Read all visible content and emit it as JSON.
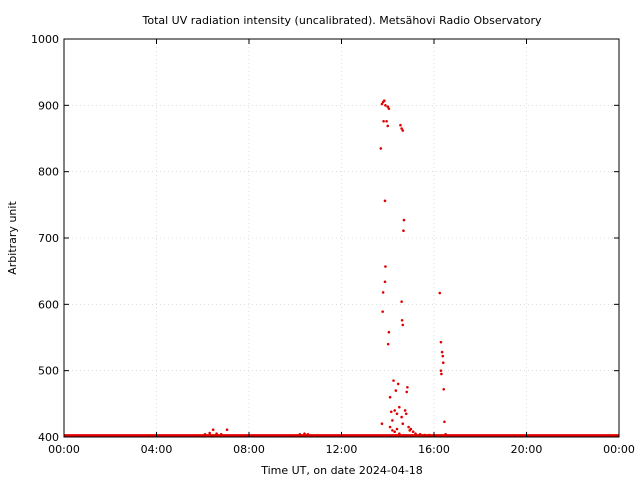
{
  "chart_data": {
    "type": "scatter",
    "title": "Total UV radiation intensity (uncalibrated). Metsähovi Radio Observatory",
    "xlabel": "Time UT, on date 2024-04-18",
    "ylabel": "Arbitrary unit",
    "xlim": [
      0,
      24
    ],
    "ylim": [
      400,
      1000
    ],
    "x_ticks": [
      {
        "value": 0,
        "label": "00:00"
      },
      {
        "value": 4,
        "label": "04:00"
      },
      {
        "value": 8,
        "label": "08:00"
      },
      {
        "value": 12,
        "label": "12:00"
      },
      {
        "value": 16,
        "label": "16:00"
      },
      {
        "value": 20,
        "label": "20:00"
      },
      {
        "value": 24,
        "label": "00:00"
      }
    ],
    "y_ticks": [
      {
        "value": 400,
        "label": "400"
      },
      {
        "value": 500,
        "label": "500"
      },
      {
        "value": 600,
        "label": "600"
      },
      {
        "value": 700,
        "label": "700"
      },
      {
        "value": 800,
        "label": "800"
      },
      {
        "value": 900,
        "label": "900"
      },
      {
        "value": 1000,
        "label": "1000"
      }
    ],
    "grid": true,
    "series_color": "#e00000",
    "baseline": {
      "y": 402,
      "x_start": 0,
      "x_end": 24
    },
    "points": [
      [
        6.1,
        404
      ],
      [
        6.3,
        406
      ],
      [
        6.45,
        411
      ],
      [
        6.6,
        405
      ],
      [
        6.8,
        404
      ],
      [
        7.05,
        411
      ],
      [
        10.2,
        404
      ],
      [
        10.4,
        405
      ],
      [
        10.55,
        404
      ],
      [
        13.7,
        835
      ],
      [
        13.75,
        902
      ],
      [
        13.8,
        905
      ],
      [
        13.85,
        907
      ],
      [
        13.9,
        900
      ],
      [
        13.82,
        876
      ],
      [
        13.95,
        876
      ],
      [
        14.0,
        898
      ],
      [
        14.05,
        895
      ],
      [
        14.0,
        869
      ],
      [
        13.88,
        756
      ],
      [
        13.9,
        657
      ],
      [
        13.88,
        634
      ],
      [
        13.8,
        618
      ],
      [
        13.78,
        589
      ],
      [
        14.05,
        558
      ],
      [
        14.02,
        540
      ],
      [
        13.75,
        420
      ],
      [
        14.1,
        460
      ],
      [
        14.15,
        438
      ],
      [
        14.2,
        425
      ],
      [
        14.25,
        485
      ],
      [
        14.3,
        440
      ],
      [
        14.35,
        470
      ],
      [
        14.4,
        435
      ],
      [
        14.45,
        480
      ],
      [
        14.5,
        445
      ],
      [
        14.1,
        415
      ],
      [
        14.2,
        410
      ],
      [
        14.3,
        408
      ],
      [
        14.4,
        412
      ],
      [
        14.5,
        405
      ],
      [
        14.6,
        430
      ],
      [
        14.65,
        420
      ],
      [
        14.55,
        870
      ],
      [
        14.6,
        865
      ],
      [
        14.65,
        862
      ],
      [
        14.7,
        727
      ],
      [
        14.68,
        711
      ],
      [
        14.6,
        604
      ],
      [
        14.62,
        576
      ],
      [
        14.65,
        569
      ],
      [
        14.75,
        440
      ],
      [
        14.8,
        435
      ],
      [
        14.85,
        475
      ],
      [
        14.82,
        468
      ],
      [
        14.9,
        415
      ],
      [
        14.95,
        410
      ],
      [
        15.0,
        412
      ],
      [
        15.1,
        408
      ],
      [
        15.2,
        405
      ],
      [
        15.4,
        404
      ],
      [
        15.6,
        403
      ],
      [
        15.8,
        403
      ],
      [
        16.25,
        617
      ],
      [
        16.3,
        543
      ],
      [
        16.35,
        528
      ],
      [
        16.38,
        522
      ],
      [
        16.4,
        512
      ],
      [
        16.3,
        500
      ],
      [
        16.32,
        495
      ],
      [
        16.42,
        472
      ],
      [
        16.45,
        423
      ],
      [
        16.5,
        404
      ]
    ]
  }
}
